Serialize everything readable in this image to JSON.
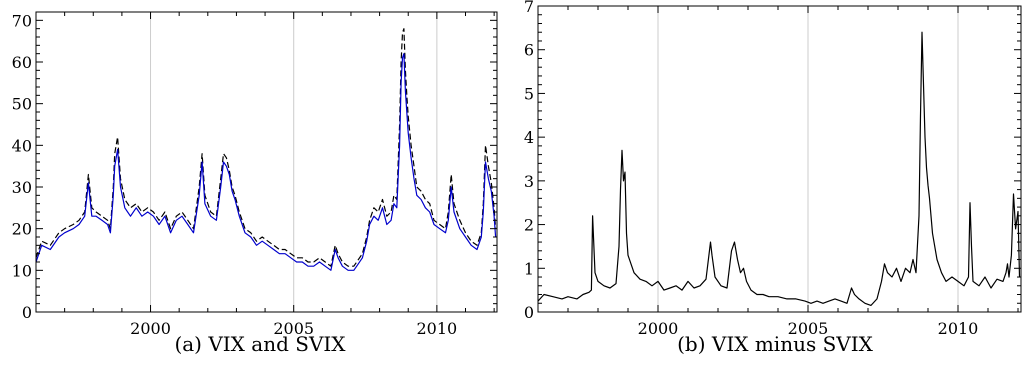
{
  "captions": [
    "(a) VIX and SVIX",
    "(b) VIX minus SVIX"
  ],
  "chart_data": [
    {
      "type": "line",
      "title": "",
      "caption": "(a) VIX and SVIX",
      "xlabel": "",
      "ylabel": "",
      "xlim": [
        1996.0,
        2012.1
      ],
      "ylim": [
        0,
        72
      ],
      "xticks": [
        2000,
        2005,
        2010
      ],
      "xtick_labels": [
        "2000",
        "2005",
        "2010"
      ],
      "yticks": [
        0,
        10,
        20,
        30,
        40,
        50,
        60,
        70
      ],
      "ytick_labels": [
        "0",
        "10",
        "20",
        "30",
        "40",
        "50",
        "60",
        "70"
      ],
      "grid": "vertical at major x ticks",
      "legend": "none",
      "colors": {
        "VIX": "#000000",
        "SVIX": "#0000cc",
        "grid": "#cccccc"
      },
      "line_styles": {
        "VIX": "dashed",
        "SVIX": "solid"
      },
      "series": [
        {
          "key": "VIX",
          "x": [
            1996.0,
            1996.2,
            1996.5,
            1996.8,
            1997.0,
            1997.3,
            1997.5,
            1997.7,
            1997.83,
            1997.95,
            1998.1,
            1998.3,
            1998.5,
            1998.6,
            1998.7,
            1998.75,
            1998.85,
            1998.95,
            1999.1,
            1999.3,
            1999.5,
            1999.7,
            1999.9,
            2000.1,
            2000.3,
            2000.5,
            2000.7,
            2000.9,
            2001.1,
            2001.3,
            2001.5,
            2001.7,
            2001.8,
            2001.9,
            2002.1,
            2002.3,
            2002.45,
            2002.55,
            2002.65,
            2002.75,
            2002.85,
            2002.95,
            2003.1,
            2003.3,
            2003.5,
            2003.7,
            2003.9,
            2004.1,
            2004.3,
            2004.5,
            2004.7,
            2004.9,
            2005.1,
            2005.3,
            2005.5,
            2005.7,
            2005.9,
            2006.1,
            2006.3,
            2006.45,
            2006.55,
            2006.7,
            2006.9,
            2007.1,
            2007.2,
            2007.4,
            2007.55,
            2007.65,
            2007.8,
            2007.95,
            2008.1,
            2008.25,
            2008.4,
            2008.5,
            2008.6,
            2008.7,
            2008.75,
            2008.8,
            2008.85,
            2008.9,
            2008.95,
            2009.0,
            2009.1,
            2009.2,
            2009.3,
            2009.45,
            2009.6,
            2009.75,
            2009.9,
            2010.1,
            2010.3,
            2010.4,
            2010.5,
            2010.6,
            2010.8,
            2011.0,
            2011.2,
            2011.4,
            2011.55,
            2011.62,
            2011.7,
            2011.8,
            2011.9,
            2012.0,
            2012.05
          ],
          "y": [
            13,
            17,
            16,
            19,
            20,
            21,
            22,
            24,
            33,
            25,
            24,
            23,
            22,
            20,
            30,
            38,
            42,
            32,
            27,
            25,
            26,
            24,
            25,
            24,
            22,
            24,
            20,
            23,
            24,
            22,
            20,
            30,
            38,
            28,
            24,
            23,
            32,
            38,
            37,
            34,
            30,
            28,
            24,
            20,
            19,
            17,
            18,
            17,
            16,
            15,
            15,
            14,
            13,
            13,
            12,
            12,
            13,
            12,
            11,
            16,
            14,
            12,
            11,
            11,
            12,
            14,
            18,
            22,
            25,
            24,
            27,
            23,
            24,
            28,
            27,
            45,
            60,
            67,
            68,
            58,
            52,
            47,
            40,
            35,
            30,
            29,
            27,
            26,
            22,
            21,
            20,
            24,
            33,
            26,
            22,
            19,
            17,
            16,
            19,
            26,
            40,
            35,
            31,
            25,
            20
          ]
        },
        {
          "key": "SVIX",
          "x": [
            1996.0,
            1996.2,
            1996.5,
            1996.8,
            1997.0,
            1997.3,
            1997.5,
            1997.7,
            1997.83,
            1997.95,
            1998.1,
            1998.3,
            1998.5,
            1998.6,
            1998.7,
            1998.75,
            1998.85,
            1998.95,
            1999.1,
            1999.3,
            1999.5,
            1999.7,
            1999.9,
            2000.1,
            2000.3,
            2000.5,
            2000.7,
            2000.9,
            2001.1,
            2001.3,
            2001.5,
            2001.7,
            2001.8,
            2001.9,
            2002.1,
            2002.3,
            2002.45,
            2002.55,
            2002.65,
            2002.75,
            2002.85,
            2002.95,
            2003.1,
            2003.3,
            2003.5,
            2003.7,
            2003.9,
            2004.1,
            2004.3,
            2004.5,
            2004.7,
            2004.9,
            2005.1,
            2005.3,
            2005.5,
            2005.7,
            2005.9,
            2006.1,
            2006.3,
            2006.45,
            2006.55,
            2006.7,
            2006.9,
            2007.1,
            2007.2,
            2007.4,
            2007.55,
            2007.65,
            2007.8,
            2007.95,
            2008.1,
            2008.25,
            2008.4,
            2008.5,
            2008.6,
            2008.7,
            2008.75,
            2008.8,
            2008.85,
            2008.9,
            2008.95,
            2009.0,
            2009.1,
            2009.2,
            2009.3,
            2009.45,
            2009.6,
            2009.75,
            2009.9,
            2010.1,
            2010.3,
            2010.4,
            2010.5,
            2010.6,
            2010.8,
            2011.0,
            2011.2,
            2011.4,
            2011.55,
            2011.62,
            2011.7,
            2011.8,
            2011.9,
            2012.0,
            2012.05
          ],
          "y": [
            12,
            16,
            15,
            18,
            19,
            20,
            21,
            23,
            31,
            23,
            23,
            22,
            21,
            19,
            28,
            35,
            39,
            30,
            25,
            23,
            25,
            23,
            24,
            23,
            21,
            23,
            19,
            22,
            23,
            21,
            19,
            28,
            36,
            26,
            23,
            22,
            30,
            36,
            35,
            33,
            29,
            27,
            23,
            19,
            18,
            16,
            17,
            16,
            15,
            14,
            14,
            13,
            12,
            12,
            11,
            11,
            12,
            11,
            10,
            15,
            13,
            11,
            10,
            10,
            11,
            13,
            17,
            21,
            23,
            22,
            25,
            21,
            22,
            26,
            25,
            40,
            55,
            61,
            62,
            53,
            48,
            43,
            37,
            32,
            28,
            27,
            25,
            24,
            21,
            20,
            19,
            22,
            30,
            24,
            20,
            18,
            16,
            15,
            18,
            24,
            36,
            32,
            29,
            23,
            18
          ]
        }
      ]
    },
    {
      "type": "line",
      "title": "",
      "caption": "(b) VIX minus SVIX",
      "xlabel": "",
      "ylabel": "",
      "xlim": [
        1996.0,
        2012.1
      ],
      "ylim": [
        0,
        7
      ],
      "xticks": [
        2000,
        2005,
        2010
      ],
      "xtick_labels": [
        "2000",
        "2005",
        "2010"
      ],
      "yticks": [
        0,
        1,
        2,
        3,
        4,
        5,
        6,
        7
      ],
      "ytick_labels": [
        "0",
        "1",
        "2",
        "3",
        "4",
        "5",
        "6",
        "7"
      ],
      "grid": "vertical at major x ticks",
      "legend": "none",
      "colors": {
        "line": "#000000",
        "grid": "#cccccc"
      },
      "series": [
        {
          "key": "VIX-SVIX",
          "x": [
            1996.0,
            1996.2,
            1996.5,
            1996.8,
            1997.0,
            1997.3,
            1997.5,
            1997.7,
            1997.78,
            1997.82,
            1997.9,
            1998.0,
            1998.2,
            1998.4,
            1998.6,
            1998.7,
            1998.75,
            1998.8,
            1998.85,
            1998.9,
            1998.95,
            1999.0,
            1999.2,
            1999.4,
            1999.6,
            1999.8,
            2000.0,
            2000.2,
            2000.4,
            2000.6,
            2000.8,
            2001.0,
            2001.2,
            2001.4,
            2001.6,
            2001.75,
            2001.8,
            2001.9,
            2002.1,
            2002.3,
            2002.45,
            2002.55,
            2002.65,
            2002.75,
            2002.85,
            2002.95,
            2003.1,
            2003.3,
            2003.5,
            2003.7,
            2004.0,
            2004.3,
            2004.6,
            2004.9,
            2005.1,
            2005.3,
            2005.5,
            2005.7,
            2005.9,
            2006.1,
            2006.3,
            2006.45,
            2006.55,
            2006.7,
            2006.9,
            2007.1,
            2007.3,
            2007.45,
            2007.55,
            2007.65,
            2007.8,
            2007.95,
            2008.1,
            2008.25,
            2008.4,
            2008.5,
            2008.6,
            2008.7,
            2008.75,
            2008.8,
            2008.85,
            2008.9,
            2008.95,
            2009.0,
            2009.05,
            2009.15,
            2009.3,
            2009.45,
            2009.6,
            2009.8,
            2010.0,
            2010.2,
            2010.35,
            2010.4,
            2010.45,
            2010.5,
            2010.7,
            2010.9,
            2011.1,
            2011.3,
            2011.5,
            2011.6,
            2011.65,
            2011.7,
            2011.78,
            2011.85,
            2011.92,
            2012.0,
            2012.05
          ],
          "y": [
            0.25,
            0.4,
            0.35,
            0.3,
            0.35,
            0.3,
            0.4,
            0.45,
            0.5,
            2.2,
            0.9,
            0.7,
            0.6,
            0.55,
            0.65,
            1.5,
            2.8,
            3.7,
            3.0,
            3.2,
            1.8,
            1.3,
            0.9,
            0.75,
            0.7,
            0.6,
            0.7,
            0.5,
            0.55,
            0.6,
            0.5,
            0.7,
            0.55,
            0.6,
            0.75,
            1.6,
            1.3,
            0.8,
            0.6,
            0.55,
            1.4,
            1.6,
            1.2,
            0.9,
            1.0,
            0.7,
            0.5,
            0.4,
            0.4,
            0.35,
            0.35,
            0.3,
            0.3,
            0.25,
            0.2,
            0.25,
            0.2,
            0.25,
            0.3,
            0.25,
            0.2,
            0.55,
            0.4,
            0.3,
            0.2,
            0.15,
            0.3,
            0.7,
            1.1,
            0.9,
            0.8,
            1.0,
            0.7,
            1.0,
            0.9,
            1.2,
            0.9,
            2.2,
            4.5,
            6.4,
            5.2,
            4.0,
            3.3,
            2.9,
            2.6,
            1.8,
            1.2,
            0.9,
            0.7,
            0.8,
            0.7,
            0.6,
            0.8,
            2.5,
            1.5,
            0.7,
            0.6,
            0.8,
            0.55,
            0.75,
            0.7,
            0.9,
            1.1,
            0.8,
            1.3,
            2.7,
            1.9,
            2.3,
            0.8
          ]
        }
      ]
    }
  ]
}
